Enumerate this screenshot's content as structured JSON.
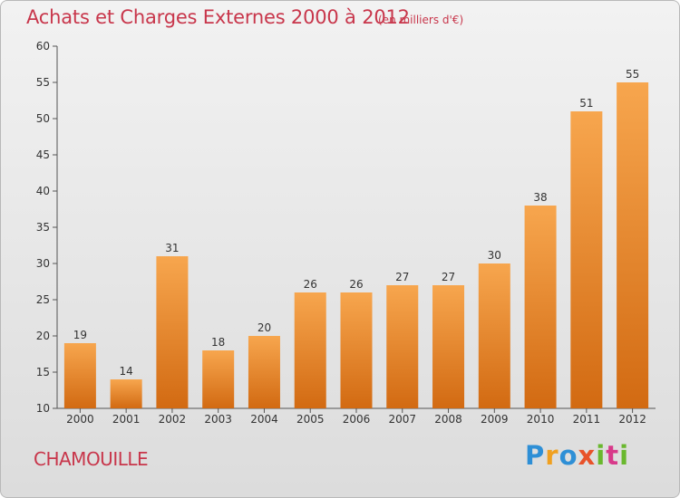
{
  "header": {
    "title": "Achats et Charges Externes 2000 à 2012",
    "subtitle": "(en milliers d'€)"
  },
  "footer": {
    "commune": "CHAMOUILLE",
    "brand": [
      "P",
      "r",
      "o",
      "x",
      "i",
      "t",
      "i"
    ]
  },
  "colors": {
    "bar_light": "#f7a64e",
    "bar_dark": "#d26a12",
    "title": "#c8364b"
  },
  "chart_data": {
    "type": "bar",
    "title": "Achats et Charges Externes 2000 à 2012",
    "subtitle": "(en milliers d'€)",
    "xlabel": "",
    "ylabel": "",
    "categories": [
      "2000",
      "2001",
      "2002",
      "2003",
      "2004",
      "2005",
      "2006",
      "2007",
      "2008",
      "2009",
      "2010",
      "2011",
      "2012"
    ],
    "values": [
      19,
      14,
      31,
      18,
      20,
      26,
      26,
      27,
      27,
      30,
      38,
      51,
      55
    ],
    "ylim": [
      10,
      60
    ],
    "yticks": [
      10,
      15,
      20,
      25,
      30,
      35,
      40,
      45,
      50,
      55,
      60
    ],
    "grid": false,
    "data_labels": true
  }
}
